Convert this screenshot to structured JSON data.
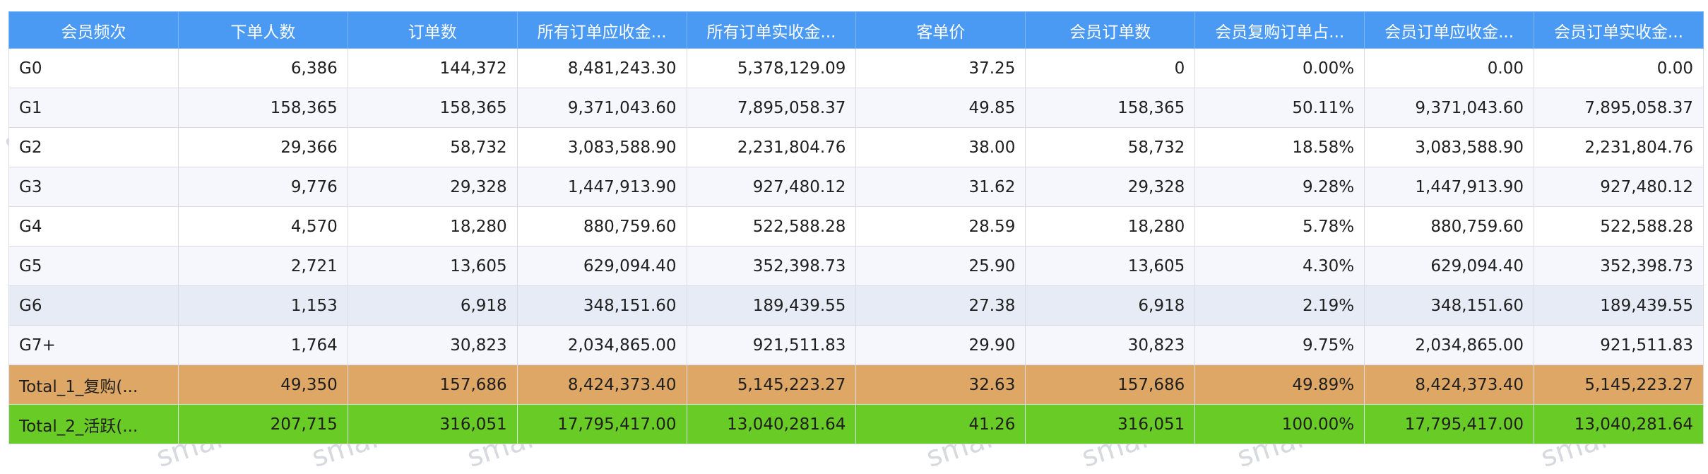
{
  "watermark": "smart",
  "table": {
    "columns": [
      "会员频次",
      "下单人数",
      "订单数",
      "所有订单应收金...",
      "所有订单实收金...",
      "客单价",
      "会员订单数",
      "会员复购订单占...",
      "会员订单应收金...",
      "会员订单实收金..."
    ],
    "rows": [
      [
        "G0",
        "6,386",
        "144,372",
        "8,481,243.30",
        "5,378,129.09",
        "37.25",
        "0",
        "0.00%",
        "0.00",
        "0.00"
      ],
      [
        "G1",
        "158,365",
        "158,365",
        "9,371,043.60",
        "7,895,058.37",
        "49.85",
        "158,365",
        "50.11%",
        "9,371,043.60",
        "7,895,058.37"
      ],
      [
        "G2",
        "29,366",
        "58,732",
        "3,083,588.90",
        "2,231,804.76",
        "38.00",
        "58,732",
        "18.58%",
        "3,083,588.90",
        "2,231,804.76"
      ],
      [
        "G3",
        "9,776",
        "29,328",
        "1,447,913.90",
        "927,480.12",
        "31.62",
        "29,328",
        "9.28%",
        "1,447,913.90",
        "927,480.12"
      ],
      [
        "G4",
        "4,570",
        "18,280",
        "880,759.60",
        "522,588.28",
        "28.59",
        "18,280",
        "5.78%",
        "880,759.60",
        "522,588.28"
      ],
      [
        "G5",
        "2,721",
        "13,605",
        "629,094.40",
        "352,398.73",
        "25.90",
        "13,605",
        "4.30%",
        "629,094.40",
        "352,398.73"
      ],
      [
        "G6",
        "1,153",
        "6,918",
        "348,151.60",
        "189,439.55",
        "27.38",
        "6,918",
        "2.19%",
        "348,151.60",
        "189,439.55"
      ],
      [
        "G7+",
        "1,764",
        "30,823",
        "2,034,865.00",
        "921,511.83",
        "29.90",
        "30,823",
        "9.75%",
        "2,034,865.00",
        "921,511.83"
      ],
      [
        "Total_1_复购(...",
        "49,350",
        "157,686",
        "8,424,373.40",
        "5,145,223.27",
        "32.63",
        "157,686",
        "49.89%",
        "8,424,373.40",
        "5,145,223.27"
      ],
      [
        "Total_2_活跃(...",
        "207,715",
        "316,051",
        "17,795,417.00",
        "13,040,281.64",
        "41.26",
        "316,051",
        "100.00%",
        "17,795,417.00",
        "13,040,281.64"
      ]
    ],
    "row_styles": [
      "row-a",
      "row-b",
      "row-a",
      "row-b",
      "row-a",
      "row-b",
      "row-c",
      "row-b",
      "total-1",
      "total-2"
    ],
    "total_colors": {
      "total_1": "#dea766",
      "total_2": "#69cb25"
    },
    "header_color": "#4a9af3"
  }
}
